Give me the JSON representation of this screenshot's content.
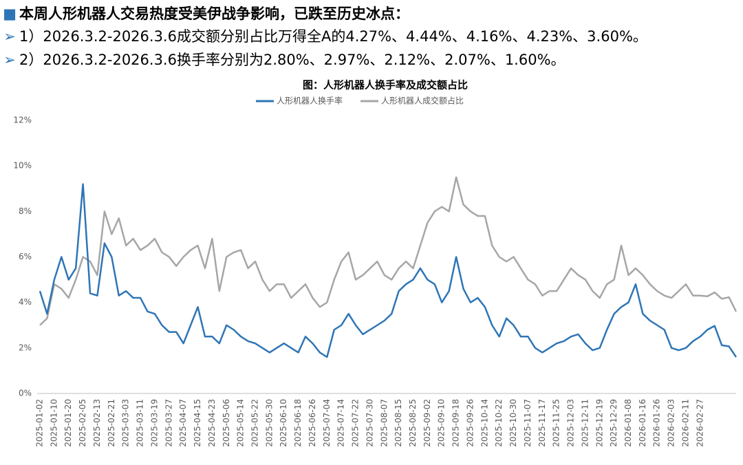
{
  "header": {
    "title": "本周人形机器人交易热度受美伊战争影响，已跌至历史冰点：",
    "bullets": [
      "1）2026.3.2-2026.3.6成交额分别占比万得全A的4.27%、4.44%、4.16%、4.23%、3.60%。",
      "2）2026.3.2-2026.3.6换手率分别为2.80%、2.97%、2.12%、2.07%、1.60%。"
    ]
  },
  "chart_data": {
    "type": "line",
    "title": "图：人形机器人换手率及成交额占比",
    "categories": [
      "2025-01-02",
      null,
      "2025-01-10",
      null,
      "2025-01-20",
      null,
      "2025-02-05",
      null,
      "2025-02-13",
      null,
      "2025-02-21",
      null,
      "2025-03-03",
      null,
      "2025-03-11",
      null,
      "2025-03-19",
      null,
      "2025-03-27",
      null,
      "2025-04-07",
      null,
      "2025-04-15",
      null,
      "2025-04-23",
      null,
      "2025-05-06",
      null,
      "2025-05-14",
      null,
      "2025-05-22",
      null,
      "2025-05-30",
      null,
      "2025-06-10",
      null,
      "2025-06-18",
      null,
      "2025-06-26",
      null,
      "2025-07-04",
      null,
      "2025-07-14",
      null,
      "2025-07-22",
      null,
      "2025-07-30",
      null,
      "2025-08-07",
      null,
      "2025-08-15",
      null,
      "2025-08-25",
      null,
      "2025-09-02",
      null,
      "2025-09-10",
      null,
      "2025-09-18",
      null,
      "2025-09-26",
      null,
      "2025-10-14",
      null,
      "2025-10-22",
      null,
      "2025-10-30",
      null,
      "2025-11-07",
      null,
      "2025-11-17",
      null,
      "2025-11-25",
      null,
      "2025-12-03",
      null,
      "2025-12-11",
      null,
      "2025-12-19",
      null,
      "2025-12-29",
      null,
      "2026-01-08",
      null,
      "2026-01-16",
      null,
      "2026-01-26",
      null,
      "2026-02-03",
      null,
      "2026-02-11",
      null,
      "2026-02-27",
      null,
      null,
      null,
      null,
      null
    ],
    "series": [
      {
        "name": "人形机器人换手率",
        "color": "#2e75b6",
        "values": [
          4.5,
          3.5,
          5.0,
          6.0,
          5.0,
          5.5,
          9.2,
          4.4,
          4.3,
          6.6,
          6.0,
          4.3,
          4.5,
          4.2,
          4.2,
          3.6,
          3.5,
          3.0,
          2.7,
          2.7,
          2.2,
          3.0,
          3.8,
          2.5,
          2.5,
          2.2,
          3.0,
          2.8,
          2.5,
          2.3,
          2.2,
          2.0,
          1.8,
          2.0,
          2.2,
          2.0,
          1.8,
          2.5,
          2.2,
          1.8,
          1.6,
          2.8,
          3.0,
          3.5,
          3.0,
          2.6,
          2.8,
          3.0,
          3.2,
          3.5,
          4.5,
          4.8,
          5.0,
          5.5,
          5.0,
          4.8,
          4.0,
          4.5,
          6.0,
          4.6,
          4.0,
          4.2,
          3.8,
          3.0,
          2.5,
          3.3,
          3.0,
          2.5,
          2.5,
          2.0,
          1.8,
          2.0,
          2.2,
          2.3,
          2.5,
          2.6,
          2.2,
          1.9,
          2.0,
          2.8,
          3.5,
          3.8,
          4.0,
          4.8,
          3.5,
          3.2,
          3.0,
          2.8,
          2.0,
          1.9,
          2.0,
          2.3,
          2.5,
          2.8,
          2.97,
          2.12,
          2.07,
          1.6
        ]
      },
      {
        "name": "人形机器人成交额占比",
        "color": "#a6a6a6",
        "values": [
          3.0,
          3.3,
          4.8,
          4.6,
          4.2,
          5.0,
          6.0,
          5.8,
          5.2,
          8.0,
          7.0,
          7.7,
          6.5,
          6.8,
          6.3,
          6.5,
          6.8,
          6.2,
          6.0,
          5.6,
          6.0,
          6.3,
          6.5,
          5.5,
          6.8,
          4.5,
          6.0,
          6.2,
          6.3,
          5.5,
          5.8,
          5.0,
          4.5,
          4.8,
          4.8,
          4.2,
          4.5,
          4.8,
          4.2,
          3.8,
          4.0,
          5.0,
          5.8,
          6.2,
          5.0,
          5.2,
          5.5,
          5.8,
          5.2,
          5.0,
          5.5,
          5.8,
          5.5,
          6.5,
          7.5,
          8.0,
          8.2,
          8.0,
          9.5,
          8.3,
          8.0,
          7.8,
          7.8,
          6.5,
          6.0,
          5.8,
          6.0,
          5.5,
          5.0,
          4.8,
          4.3,
          4.5,
          4.5,
          5.0,
          5.5,
          5.2,
          5.0,
          4.5,
          4.2,
          4.8,
          5.0,
          6.5,
          5.2,
          5.5,
          5.2,
          4.8,
          4.5,
          4.3,
          4.2,
          4.5,
          4.8,
          4.3,
          4.3,
          4.27,
          4.44,
          4.16,
          4.23,
          3.6
        ]
      }
    ],
    "ylim": [
      0,
      12
    ],
    "yticks": [
      {
        "value": 0,
        "label": "0%"
      },
      {
        "value": 2,
        "label": "2%"
      },
      {
        "value": 4,
        "label": "4%"
      },
      {
        "value": 6,
        "label": "6%"
      },
      {
        "value": 8,
        "label": "8%"
      },
      {
        "value": 10,
        "label": "10%"
      },
      {
        "value": 12,
        "label": "12%"
      }
    ],
    "grid": false,
    "legend": "top"
  }
}
